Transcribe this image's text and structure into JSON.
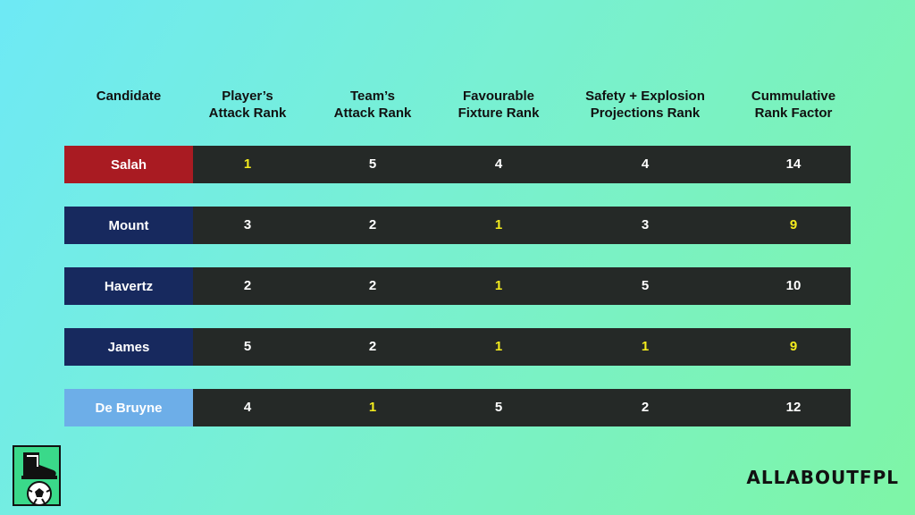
{
  "chart_data": {
    "type": "table",
    "columns": [
      "Candidate",
      "Player’s Attack Rank",
      "Team’s Attack Rank",
      "Favourable Fixture Rank",
      "Safety + Explosion Projections Rank",
      "Cummulative Rank Factor"
    ],
    "header_lines": [
      [
        "Candidate"
      ],
      [
        "Player’s",
        "Attack Rank"
      ],
      [
        "Team’s",
        "Attack Rank"
      ],
      [
        "Favourable",
        "Fixture Rank"
      ],
      [
        "Safety + Explosion",
        "Projections Rank"
      ],
      [
        "Cummulative",
        "Rank Factor"
      ]
    ],
    "rows": [
      {
        "name": "Salah",
        "color": "#a91b22",
        "values": [
          "1",
          "5",
          "4",
          "4",
          "14"
        ],
        "highlight": [
          true,
          false,
          false,
          false,
          false
        ]
      },
      {
        "name": "Mount",
        "color": "#17295e",
        "values": [
          "3",
          "2",
          "1",
          "3",
          "9"
        ],
        "highlight": [
          false,
          false,
          true,
          false,
          true
        ]
      },
      {
        "name": "Havertz",
        "color": "#17295e",
        "values": [
          "2",
          "2",
          "1",
          "5",
          "10"
        ],
        "highlight": [
          false,
          false,
          true,
          false,
          false
        ]
      },
      {
        "name": "James",
        "color": "#17295e",
        "values": [
          "5",
          "2",
          "1",
          "1",
          "9"
        ],
        "highlight": [
          false,
          false,
          true,
          true,
          true
        ]
      },
      {
        "name": "De Bruyne",
        "color": "#6daee8",
        "values": [
          "4",
          "1",
          "5",
          "2",
          "12"
        ],
        "highlight": [
          false,
          true,
          false,
          false,
          false
        ]
      }
    ],
    "highlight_color": "#f4ec1e",
    "default_value_color": "#ffffff"
  },
  "brand": "ALLABOUTFPL",
  "logo_icon": "boot-and-football-icon"
}
